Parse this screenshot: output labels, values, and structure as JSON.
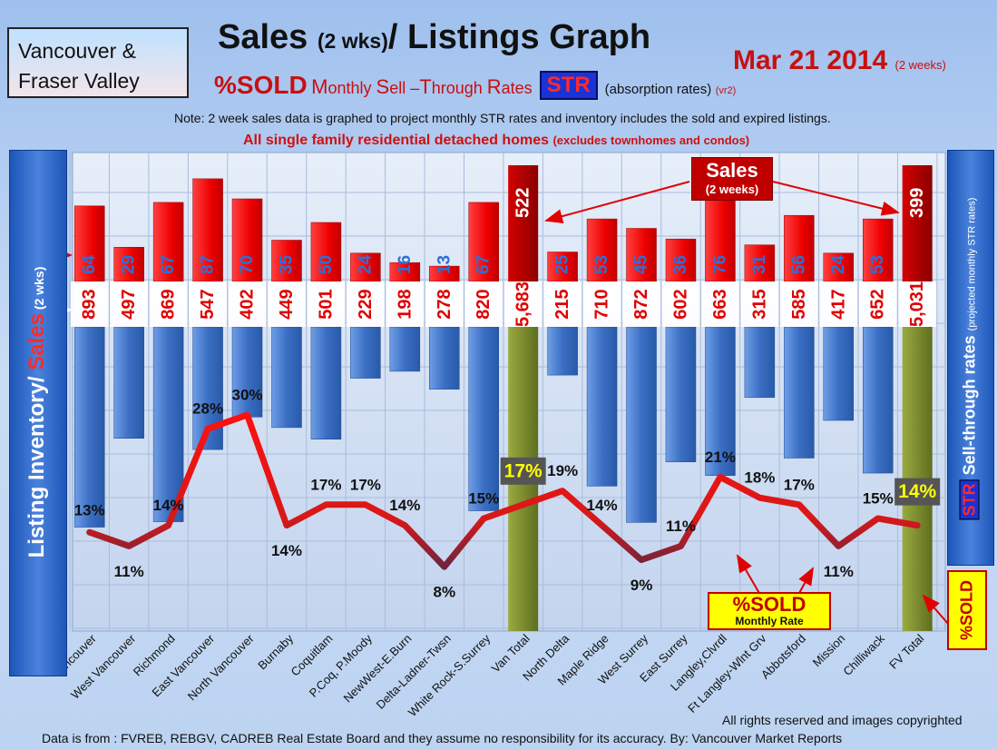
{
  "header": {
    "region_line1": "Vancouver &",
    "region_line2": "Fraser Valley",
    "title_a": "Sales ",
    "title_b": "(2 wks)",
    "title_c": "/ Listings Graph",
    "date": "Mar 21 2014",
    "date_note": "(2 weeks)",
    "sold_pct": "%SOLD",
    "sell_through_m": "M",
    "sell_through_a": "onthly ",
    "sell_through_s": "S",
    "sell_through_b": "ell –",
    "sell_through_t": "T",
    "sell_through_c": "hrough ",
    "sell_through_r": "R",
    "sell_through_d": "ates",
    "str_badge": "STR",
    "absorption": "(absorption rates)",
    "version": "(vr2)",
    "note": "Note: 2 week sales data is graphed to project monthly STR rates and inventory includes the sold and expired listings.",
    "single_family": "All single family residential detached homes ",
    "single_family_note": "(excludes townhomes and condos)"
  },
  "left_axis": {
    "label_a": "Listing Inventory/ ",
    "label_b": "Sales",
    "label_c": " (2 wks)"
  },
  "right_axis": {
    "str": "STR",
    "label": " Sell-through rates ",
    "sub": "(projected monthly STR rates)"
  },
  "callouts": {
    "sales_main": "Sales",
    "sales_sub": "(2 weeks)",
    "sold_main": "%SOLD",
    "sold_sub": "Monthly Rate",
    "sold_vertical": "%SOLD"
  },
  "footer": {
    "rights": "All rights reserved and  images copyrighted",
    "source": "Data is  from : FVREB, REBGV, CADREB Real Estate Board and they assume  no responsibility  for its accuracy. By: Vancouver Market Reports"
  },
  "colors": {
    "sales_bar": "#ff0000",
    "inventory_bar": "#4a7fd0",
    "total_bar": "#7d8c2c",
    "rate_line_high": "#e81010",
    "rate_line_low": "#1c2f5a",
    "total_pct_box": "#ffff00"
  },
  "chart_data": {
    "type": "bar",
    "categories": [
      "Vancouver",
      "West Vancouver",
      "Richmond",
      "East Vancouver",
      "North Vancouver",
      "Burnaby",
      "Coquitlam",
      "P.Coq, P.Moody",
      "NewWest-E.Burn",
      "Delta-Ladner-Twsn",
      "White Rock-S.Surrey",
      "Van Total",
      "North Delta",
      "Maple Ridge",
      "West Surrey",
      "East Surrey",
      "Langley,Clvrdl",
      "Ft Langley-Wlnt Grv",
      "Abbotsford",
      "Mission",
      "Chilliwack",
      "FV Total"
    ],
    "series": [
      {
        "name": "Sales",
        "values": [
          64,
          29,
          67,
          87,
          70,
          35,
          50,
          24,
          16,
          13,
          67,
          522,
          25,
          53,
          45,
          36,
          76,
          31,
          56,
          24,
          53,
          399
        ]
      },
      {
        "name": "Listing Inventory",
        "values": [
          893,
          497,
          869,
          547,
          402,
          449,
          501,
          229,
          198,
          278,
          820,
          5683,
          215,
          710,
          872,
          602,
          663,
          315,
          585,
          417,
          652,
          5031
        ]
      },
      {
        "name": "%SOLD",
        "values": [
          13,
          11,
          14,
          28,
          30,
          14,
          17,
          17,
          14,
          8,
          15,
          17,
          19,
          14,
          9,
          11,
          21,
          18,
          17,
          11,
          15,
          14
        ]
      }
    ],
    "sales_labels": [
      "64",
      "29",
      "67",
      "87",
      "70",
      "35",
      "50",
      "24",
      "16",
      "13",
      "67",
      "522",
      "25",
      "53",
      "45",
      "36",
      "76",
      "31",
      "56",
      "24",
      "53",
      "399"
    ],
    "inventory_labels": [
      "893",
      "497",
      "869",
      "547",
      "402",
      "449",
      "501",
      "229",
      "198",
      "278",
      "820",
      "5,683",
      "215",
      "710",
      "872",
      "602",
      "663",
      "315",
      "585",
      "417",
      "652",
      "5,031"
    ],
    "rate_labels": [
      "13%",
      "11%",
      "14%",
      "28%",
      "30%",
      "14%",
      "17%",
      "17%",
      "14%",
      "8%",
      "15%",
      "17%",
      "19%",
      "14%",
      "9%",
      "11%",
      "21%",
      "18%",
      "17%",
      "11%",
      "15%",
      "14%"
    ],
    "totals": [
      "Van Total",
      "FV Total"
    ],
    "ylabel": "Listing Inventory/ Sales (2 wks)",
    "y2label": "STR Sell-through rates (projected monthly STR rates)",
    "grid": true
  }
}
